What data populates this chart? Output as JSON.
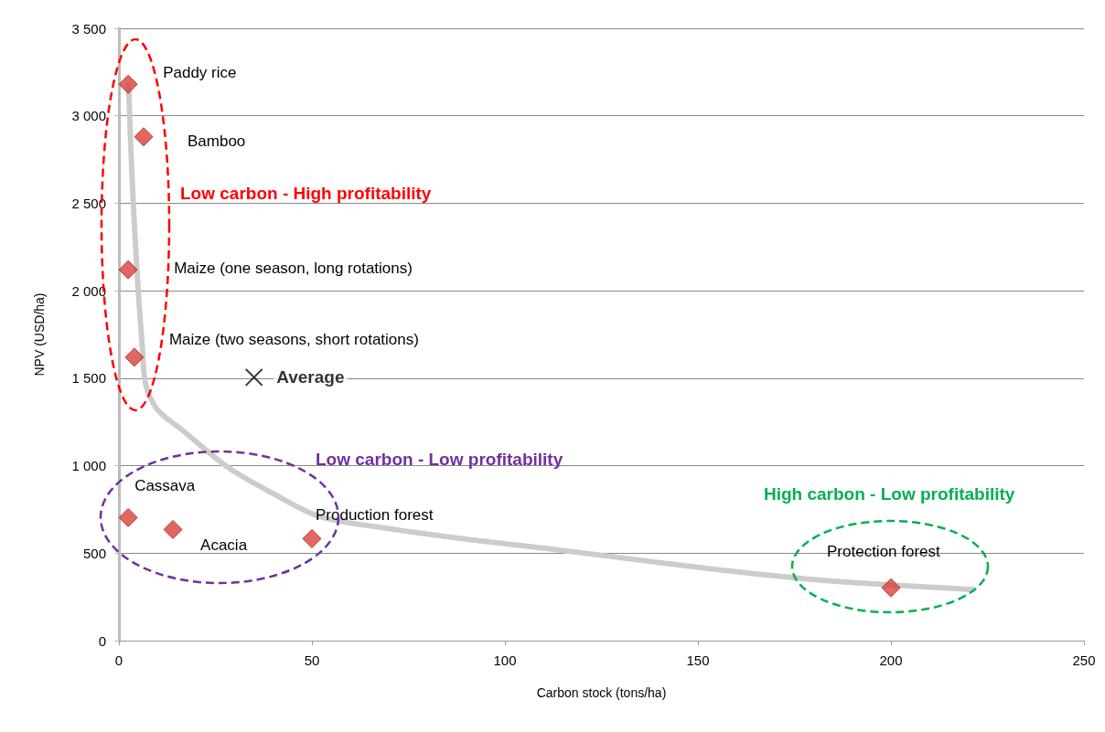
{
  "chart_data": {
    "type": "scatter",
    "xlabel": "Carbon stock (tons/ha)",
    "ylabel": "NPV (USD/ha)",
    "xlim": [
      0,
      250
    ],
    "xticks": [
      0,
      50,
      100,
      150,
      200,
      250
    ],
    "ylim": [
      0,
      3500
    ],
    "yticks": [
      0,
      500,
      {
        "value": 1000,
        "label": "1 000"
      },
      {
        "value": 1500,
        "label": "1 500"
      },
      {
        "value": 2000,
        "label": "2 000"
      },
      {
        "value": 2500,
        "label": "2 500"
      },
      {
        "value": 3000,
        "label": "3 000"
      },
      {
        "value": 3500,
        "label": "3 500"
      }
    ],
    "grid": "y",
    "legend": false,
    "series": [
      {
        "type": "line",
        "color": "#cccccc",
        "line_style": "dotted",
        "marker": "none",
        "x": [
          2.5,
          3.5,
          5,
          6,
          7,
          10,
          16.6,
          28,
          40,
          52,
          70,
          90,
          111,
          135,
          159,
          185,
          221.5
        ],
        "values": [
          3180,
          2600,
          2000,
          1700,
          1460,
          1320,
          1200,
          995,
          840,
          710,
          640,
          580,
          526,
          460,
          396,
          340,
          292
        ]
      },
      {
        "color": "#d9413a",
        "marker": "diamond",
        "x": [
          2.4,
          6.4,
          2.4,
          4,
          2.4,
          14,
          50,
          200
        ],
        "values": [
          3180,
          2880,
          2120,
          1620,
          703,
          635,
          583,
          302
        ]
      },
      {
        "name": "Average",
        "color": "#000000",
        "marker": "cross",
        "x": [
          35
        ],
        "values": [
          1505
        ]
      }
    ],
    "annotations": [
      {
        "text": "Paddy rice",
        "x": 2.4,
        "y": 3180
      },
      {
        "text": "Bamboo",
        "x": 6.4,
        "y": 2880
      },
      {
        "text": "Maize (one season, long rotations)",
        "x": 2.4,
        "y": 2120
      },
      {
        "text": "Maize (two seasons, short rotations)",
        "x": 4,
        "y": 1620
      },
      {
        "text": "Cassava",
        "x": 2.4,
        "y": 703
      },
      {
        "text": "Acacia",
        "x": 14,
        "y": 635
      },
      {
        "text": "Production forest",
        "x": 50,
        "y": 583
      },
      {
        "text": "Protection forest",
        "x": 200,
        "y": 302
      },
      "Low carbon - High profitability",
      "Low carbon - Low profitability",
      "High carbon - Low profitability"
    ]
  }
}
